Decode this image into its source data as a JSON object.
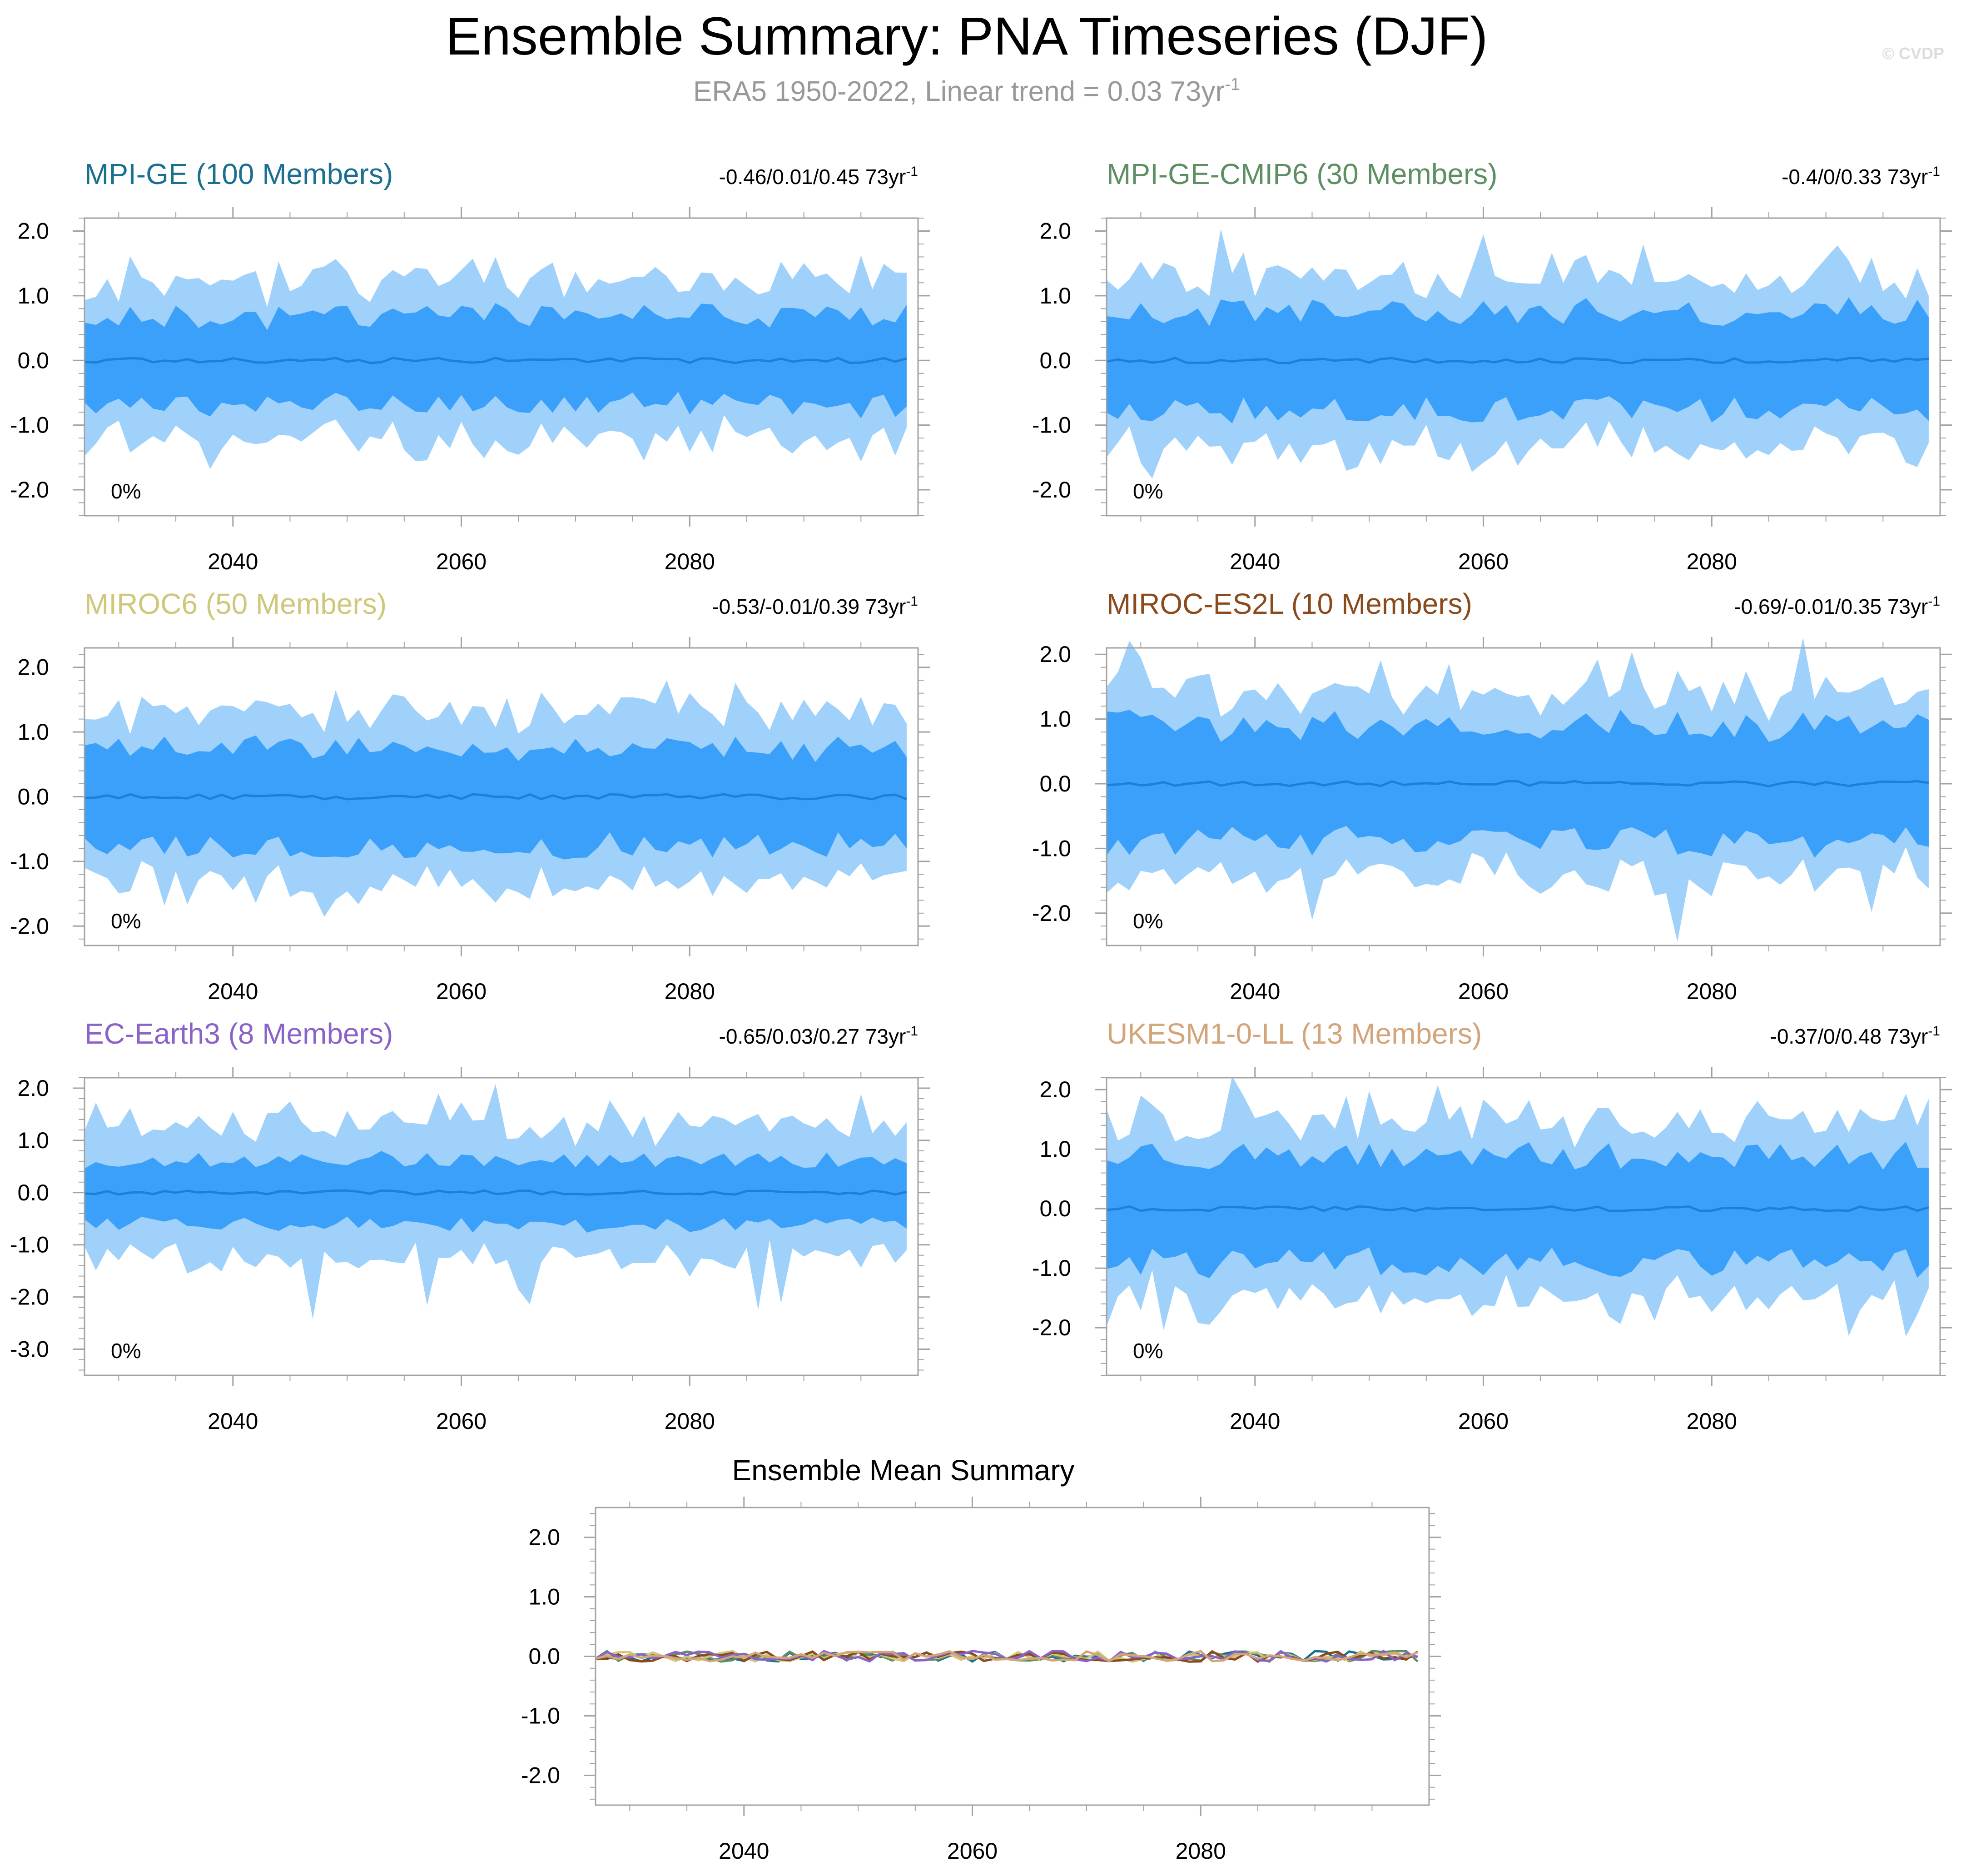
{
  "figure": {
    "title": "Ensemble Summary: PNA Timeseries (DJF)",
    "subtitle": "ERA5 1950-2022, Linear trend = 0.03 73yr",
    "subtitle_sup": "-1",
    "copyright": "© CVDP"
  },
  "colors": {
    "outer_band": "#9fd1fb",
    "inner_band": "#3aa0fa",
    "mean_line": "#1f7fd6",
    "frame": "#a3a3a3",
    "tick_text": "#000000"
  },
  "chart_data": [
    {
      "type": "area",
      "title": "MPI-GE (100 Members)",
      "title_color": "#1b6f8f",
      "stats": "-0.46/0.01/0.45 73yr",
      "stats_sup": "-1",
      "percent_label": "0%",
      "x_range": [
        2027,
        2100
      ],
      "ylim": [
        -2.4,
        2.2
      ],
      "yticks": [
        "2.0",
        "1.0",
        "0.0",
        "-1.0",
        "-2.0"
      ],
      "ytick_values": [
        2,
        1,
        0,
        -1,
        -2
      ],
      "xticks": [
        "2040",
        "2060",
        "2080"
      ],
      "xtick_values": [
        2040,
        2060,
        2080
      ],
      "seed": 11,
      "outer_amp": 1.25,
      "inner_amp": 0.72,
      "spike": 0.15
    },
    {
      "type": "area",
      "title": "MPI-GE-CMIP6 (30 Members)",
      "title_color": "#5d8f63",
      "stats": "-0.4/0/0.33 73yr",
      "stats_sup": "-1",
      "percent_label": "0%",
      "x_range": [
        2027,
        2100
      ],
      "ylim": [
        -2.4,
        2.2
      ],
      "yticks": [
        "2.0",
        "1.0",
        "0.0",
        "-1.0",
        "-2.0"
      ],
      "ytick_values": [
        2,
        1,
        0,
        -1,
        -2
      ],
      "xticks": [
        "2040",
        "2060",
        "2080"
      ],
      "xtick_values": [
        2040,
        2060,
        2080
      ],
      "seed": 23,
      "outer_amp": 1.35,
      "inner_amp": 0.8,
      "spike": 0.35
    },
    {
      "type": "area",
      "title": "MIROC6 (50 Members)",
      "title_color": "#cfc77a",
      "stats": "-0.53/-0.01/0.39 73yr",
      "stats_sup": "-1",
      "percent_label": "0%",
      "x_range": [
        2027,
        2100
      ],
      "ylim": [
        -2.3,
        2.3
      ],
      "yticks": [
        "2.0",
        "1.0",
        "0.0",
        "-1.0",
        "-2.0"
      ],
      "ytick_values": [
        2,
        1,
        0,
        -1,
        -2
      ],
      "xticks": [
        "2040",
        "2060",
        "2080"
      ],
      "xtick_values": [
        2040,
        2060,
        2080
      ],
      "seed": 37,
      "outer_amp": 1.35,
      "inner_amp": 0.8,
      "spike": 0.2
    },
    {
      "type": "area",
      "title": "MIROC-ES2L (10 Members)",
      "title_color": "#8b4a1c",
      "stats": "-0.69/-0.01/0.35 73yr",
      "stats_sup": "-1",
      "percent_label": "0%",
      "x_range": [
        2027,
        2100
      ],
      "ylim": [
        -2.5,
        2.1
      ],
      "yticks": [
        "2.0",
        "1.0",
        "0.0",
        "-1.0",
        "-2.0"
      ],
      "ytick_values": [
        2,
        1,
        0,
        -1,
        -2
      ],
      "xticks": [
        "2040",
        "2060",
        "2080"
      ],
      "xtick_values": [
        2040,
        2060,
        2080
      ],
      "seed": 41,
      "outer_amp": 1.45,
      "inner_amp": 0.95,
      "spike": 0.6
    },
    {
      "type": "area",
      "title": "EC-Earth3 (8 Members)",
      "title_color": "#8a63c9",
      "stats": "-0.65/0.03/0.27 73yr",
      "stats_sup": "-1",
      "percent_label": "0%",
      "x_range": [
        2027,
        2100
      ],
      "ylim": [
        -3.5,
        2.2
      ],
      "yticks": [
        "2.0",
        "1.0",
        "0.0",
        "-1.0",
        "-2.0",
        "-3.0"
      ],
      "ytick_values": [
        2,
        1,
        0,
        -1,
        -2,
        -3
      ],
      "xticks": [
        "2040",
        "2060",
        "2080"
      ],
      "xtick_values": [
        2040,
        2060,
        2080
      ],
      "seed": 53,
      "outer_amp": 1.3,
      "inner_amp": 0.65,
      "spike": 0.8
    },
    {
      "type": "area",
      "title": "UKESM1-0-LL (13 Members)",
      "title_color": "#d2a57a",
      "stats": "-0.37/0/0.48 73yr",
      "stats_sup": "-1",
      "percent_label": "0%",
      "x_range": [
        2027,
        2100
      ],
      "ylim": [
        -2.8,
        2.2
      ],
      "yticks": [
        "2.0",
        "1.0",
        "0.0",
        "-1.0",
        "-2.0"
      ],
      "ytick_values": [
        2,
        1,
        0,
        -1,
        -2
      ],
      "xticks": [
        "2040",
        "2060",
        "2080"
      ],
      "xtick_values": [
        2040,
        2060,
        2080
      ],
      "seed": 67,
      "outer_amp": 1.55,
      "inner_amp": 0.95,
      "spike": 0.6
    },
    {
      "type": "line",
      "title": "Ensemble Mean Summary",
      "x_range": [
        2027,
        2100
      ],
      "ylim": [
        -2.5,
        2.5
      ],
      "yticks": [
        "2.0",
        "1.0",
        "0.0",
        "-1.0",
        "-2.0"
      ],
      "ytick_values": [
        2,
        1,
        0,
        -1,
        -2
      ],
      "xticks": [
        "2040",
        "2060",
        "2080"
      ],
      "xtick_values": [
        2040,
        2060,
        2080
      ],
      "series_colors": [
        "#1b6f8f",
        "#5d8f63",
        "#cfc77a",
        "#8b4a1c",
        "#8a63c9",
        "#d2a57a"
      ]
    }
  ]
}
